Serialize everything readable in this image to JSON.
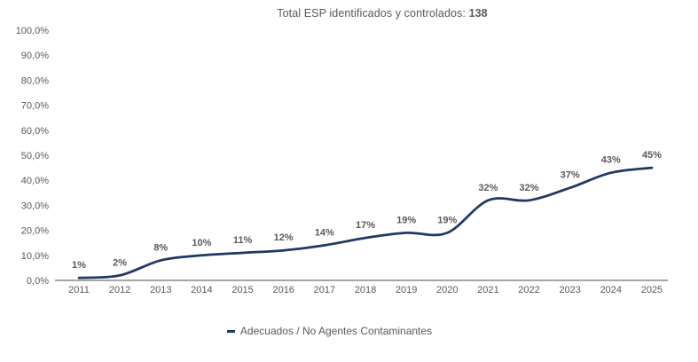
{
  "chart_data": {
    "type": "line",
    "title_prefix": "Total ESP identificados y controlados: ",
    "title_bold_value": "138",
    "title_full": "Total ESP identificados y controlados: 138",
    "categories": [
      "2011",
      "2012",
      "2013",
      "2014",
      "2015",
      "2016",
      "2017",
      "2018",
      "2019",
      "2020",
      "2021",
      "2022",
      "2023",
      "2024",
      "2025"
    ],
    "series": [
      {
        "name": "Adecuados / No Agentes Contaminantes",
        "values": [
          1,
          2,
          8,
          10,
          11,
          12,
          14,
          17,
          19,
          19,
          32,
          32,
          37,
          43,
          45
        ]
      }
    ],
    "data_labels": [
      "1%",
      "2%",
      "8%",
      "10%",
      "11%",
      "12%",
      "14%",
      "17%",
      "19%",
      "19%",
      "32%",
      "32%",
      "37%",
      "43%",
      "45%"
    ],
    "y_ticks": [
      "0,0%",
      "10,0%",
      "20,0%",
      "30,0%",
      "40,0%",
      "50,0%",
      "60,0%",
      "70,0%",
      "80,0%",
      "90,0%",
      "100,0%"
    ],
    "ylim": [
      0,
      100
    ],
    "xlabel": "",
    "ylabel": "",
    "grid": false,
    "smooth": true,
    "legend_position": "bottom",
    "colors": {
      "line": "#1F3864",
      "axis": "#A6A6A6",
      "text": "#595959",
      "background": "#FFFFFF"
    }
  }
}
